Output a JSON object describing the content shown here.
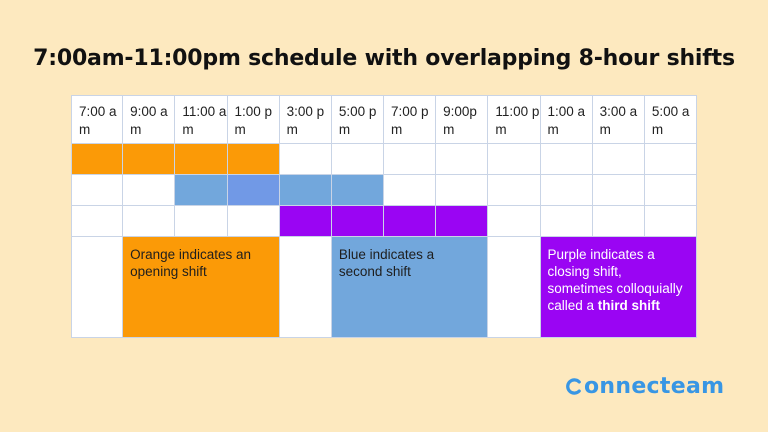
{
  "title": "7:00am-11:00pm schedule with overlapping 8-hour shifts",
  "headers": [
    "7:00 am",
    "9:00 am",
    "11:00 am",
    "1:00 pm",
    "3:00 pm",
    "5:00 pm",
    "7:00 pm",
    "9:00pm",
    "11:00 pm",
    "1:00 am",
    "3:00 am",
    "5:00 am"
  ],
  "shifts": [
    {
      "name": "opening shift",
      "color": "#fb9a07",
      "start_col": 1,
      "end_col": 4
    },
    {
      "name": "second shift",
      "color": "#72a7dc",
      "start_col": 3,
      "end_col": 6
    },
    {
      "name": "closing shift",
      "color": "#9a05f3",
      "start_col": 5,
      "end_col": 8
    }
  ],
  "legend": {
    "orange": "Orange indicates an opening shift",
    "blue": "Blue indicates a second shift",
    "purple_pre": "Purple indicates a closing shift, sometimes colloquially called a ",
    "purple_bold": "third shift"
  },
  "brand": {
    "name": "onnecteam",
    "icon": "c-logo-icon",
    "color": "#3896e4"
  }
}
